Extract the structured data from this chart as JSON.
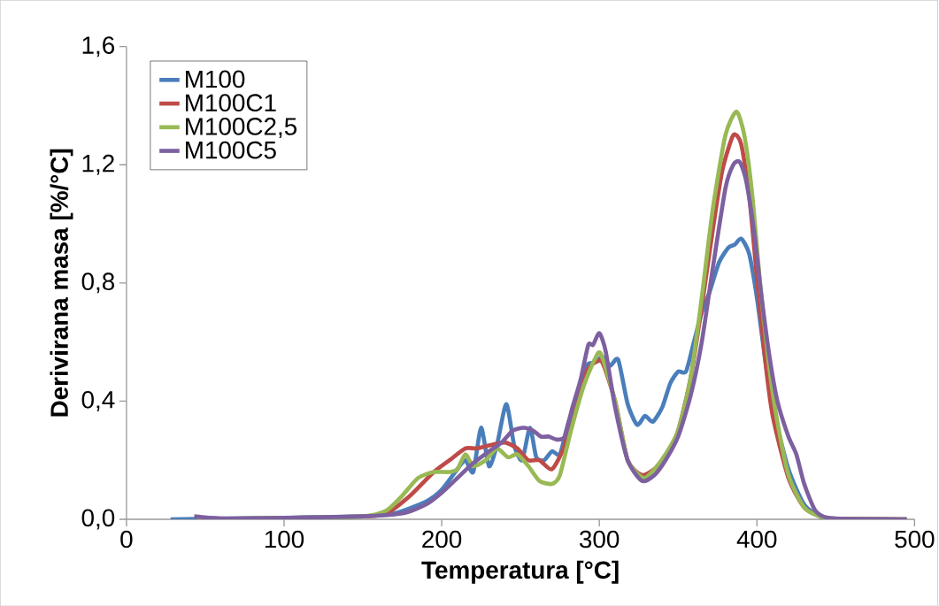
{
  "chart_data": {
    "type": "line",
    "xlabel": "Temperatura [°C]",
    "ylabel": "Derivirana masa [%/°C]",
    "xlim": [
      0,
      500
    ],
    "xticks": [
      0,
      100,
      200,
      300,
      400,
      500
    ],
    "ylim": [
      0,
      1.6
    ],
    "yticks": [
      {
        "value": 0,
        "label": "0,0"
      },
      {
        "value": 0.4,
        "label": "0,4"
      },
      {
        "value": 0.8,
        "label": "0,8"
      },
      {
        "value": 1.2,
        "label": "1,2"
      },
      {
        "value": 1.6,
        "label": "1,6"
      }
    ],
    "legend": "top left",
    "grid": false,
    "marker": "none",
    "line_style": "solid",
    "series": [
      {
        "name": "M100",
        "color": "#4a7ebb",
        "x": [
          28,
          100,
          150,
          170,
          190,
          200,
          210,
          215,
          220,
          225,
          230,
          235,
          241,
          246,
          251,
          256,
          260,
          265,
          270,
          275,
          280,
          285,
          292,
          297,
          302,
          307,
          312,
          318,
          324,
          329,
          334,
          340,
          345,
          350,
          355,
          360,
          365,
          370,
          376,
          382,
          386,
          390,
          395,
          400,
          405,
          410,
          420,
          430,
          440,
          450,
          495
        ],
        "values": [
          0,
          0.005,
          0.01,
          0.02,
          0.06,
          0.1,
          0.17,
          0.2,
          0.16,
          0.31,
          0.18,
          0.25,
          0.39,
          0.25,
          0.2,
          0.31,
          0.21,
          0.2,
          0.23,
          0.22,
          0.32,
          0.4,
          0.52,
          0.53,
          0.55,
          0.52,
          0.54,
          0.39,
          0.32,
          0.35,
          0.33,
          0.38,
          0.46,
          0.5,
          0.5,
          0.6,
          0.7,
          0.77,
          0.87,
          0.92,
          0.93,
          0.95,
          0.9,
          0.75,
          0.55,
          0.38,
          0.17,
          0.05,
          0.01,
          0.002,
          0
        ]
      },
      {
        "name": "M100C1",
        "color": "#be4b48",
        "x": [
          150,
          165,
          180,
          195,
          205,
          215,
          222,
          230,
          240,
          248,
          255,
          262,
          270,
          278,
          285,
          292,
          297,
          302,
          310,
          318,
          327,
          335,
          342,
          350,
          358,
          365,
          372,
          378,
          385,
          390,
          395,
          400,
          405,
          410,
          420,
          430,
          440,
          450,
          495
        ],
        "values": [
          0.01,
          0.02,
          0.08,
          0.16,
          0.2,
          0.24,
          0.24,
          0.25,
          0.26,
          0.24,
          0.2,
          0.2,
          0.17,
          0.25,
          0.4,
          0.5,
          0.53,
          0.53,
          0.4,
          0.2,
          0.15,
          0.17,
          0.21,
          0.3,
          0.48,
          0.72,
          0.98,
          1.18,
          1.3,
          1.27,
          1.1,
          0.82,
          0.55,
          0.35,
          0.14,
          0.04,
          0.01,
          0.002,
          0
        ]
      },
      {
        "name": "M100C2,5",
        "color": "#98b954",
        "x": [
          45,
          100,
          150,
          165,
          175,
          185,
          195,
          205,
          210,
          215,
          220,
          228,
          235,
          242,
          248,
          255,
          262,
          270,
          275,
          282,
          290,
          297,
          301,
          310,
          318,
          328,
          335,
          342,
          350,
          358,
          365,
          372,
          380,
          387,
          392,
          397,
          402,
          407,
          412,
          420,
          430,
          440,
          450,
          495
        ],
        "values": [
          0,
          0.005,
          0.01,
          0.03,
          0.08,
          0.14,
          0.16,
          0.16,
          0.17,
          0.22,
          0.18,
          0.2,
          0.24,
          0.21,
          0.22,
          0.18,
          0.13,
          0.12,
          0.15,
          0.3,
          0.45,
          0.54,
          0.56,
          0.4,
          0.2,
          0.14,
          0.17,
          0.22,
          0.3,
          0.48,
          0.75,
          1.05,
          1.3,
          1.38,
          1.3,
          1.1,
          0.8,
          0.55,
          0.36,
          0.15,
          0.04,
          0.01,
          0.002,
          0
        ]
      },
      {
        "name": "M100C5",
        "color": "#7d60a0",
        "x": [
          43,
          60,
          100,
          150,
          175,
          190,
          200,
          210,
          220,
          230,
          238,
          245,
          252,
          258,
          263,
          268,
          273,
          278,
          283,
          288,
          293,
          296,
          300,
          304,
          310,
          318,
          327,
          335,
          342,
          350,
          358,
          365,
          372,
          380,
          385,
          389,
          393,
          398,
          403,
          408,
          413,
          420,
          425,
          430,
          437,
          445,
          460,
          495
        ],
        "values": [
          0.01,
          0.003,
          0.005,
          0.01,
          0.02,
          0.05,
          0.09,
          0.14,
          0.19,
          0.23,
          0.26,
          0.3,
          0.31,
          0.3,
          0.28,
          0.28,
          0.27,
          0.28,
          0.38,
          0.47,
          0.59,
          0.59,
          0.63,
          0.57,
          0.38,
          0.2,
          0.13,
          0.15,
          0.2,
          0.28,
          0.42,
          0.6,
          0.85,
          1.12,
          1.2,
          1.21,
          1.15,
          0.98,
          0.75,
          0.55,
          0.4,
          0.28,
          0.22,
          0.12,
          0.03,
          0.005,
          0.001,
          0
        ]
      }
    ]
  }
}
